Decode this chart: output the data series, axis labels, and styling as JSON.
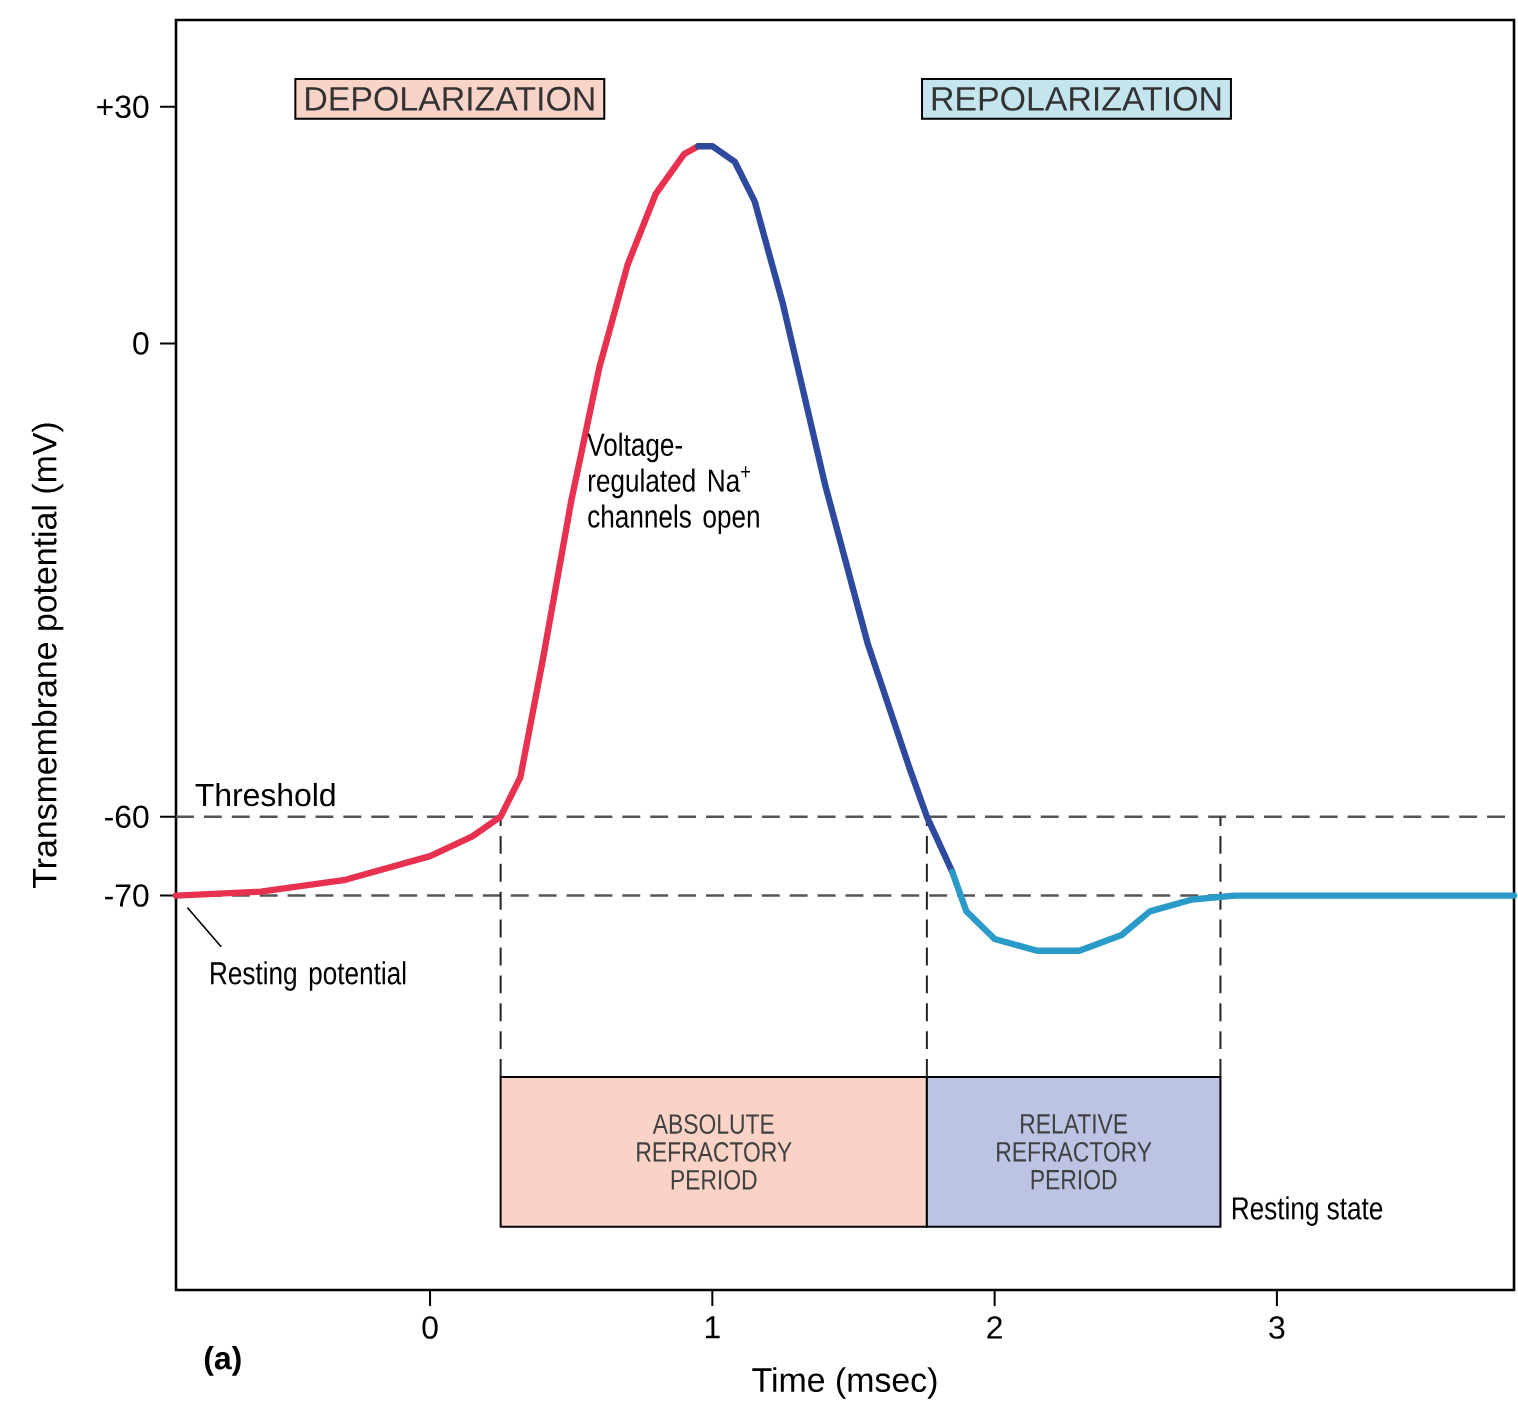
{
  "chart_data": {
    "type": "line",
    "xlabel": "Time (msec)",
    "ylabel": "Transmembrane potential (mV)",
    "xlim": [
      -0.9,
      3.84
    ],
    "ylim": [
      -120,
      41
    ],
    "xticks": [
      0,
      1,
      2,
      3
    ],
    "yticks": [
      -70,
      -60,
      0,
      {
        "value": 30,
        "label": "+30"
      }
    ],
    "series": [
      {
        "color": "#e8314e",
        "x": [
          -0.9,
          -0.6,
          -0.3,
          0,
          0.15,
          0.25,
          0.32,
          0.4,
          0.5,
          0.6,
          0.7,
          0.8,
          0.9,
          0.95
        ],
        "values": [
          -70,
          -69.5,
          -68,
          -65,
          -62.5,
          -60,
          -55,
          -40,
          -20,
          -3,
          10,
          19,
          24,
          25
        ]
      },
      {
        "color": "#2e4a9e",
        "x": [
          0.95,
          1.0,
          1.08,
          1.15,
          1.25,
          1.4,
          1.55,
          1.7,
          1.76,
          1.85
        ],
        "values": [
          25,
          25,
          23,
          18,
          5,
          -18,
          -38,
          -54,
          -60,
          -67
        ]
      },
      {
        "color": "#2a9ac8",
        "x": [
          1.85,
          1.9,
          2.0,
          2.15,
          2.3,
          2.45,
          2.55,
          2.7,
          2.85,
          3.2,
          3.84
        ],
        "values": [
          -67,
          -72,
          -75.5,
          -77,
          -77,
          -75,
          -72,
          -70.5,
          -70,
          -70,
          -70
        ]
      }
    ],
    "ref_lines": [
      {
        "axis": "y",
        "value": -60,
        "label": "Threshold",
        "line_style": "dashed",
        "color": "#555555"
      },
      {
        "axis": "y",
        "value": -70,
        "line_style": "dashed",
        "color": "#555555"
      },
      {
        "axis": "x",
        "value": 0.25,
        "line_style": "dashed",
        "color": "#222222"
      },
      {
        "axis": "x",
        "value": 1.76,
        "line_style": "dashed",
        "color": "#222222"
      },
      {
        "axis": "x",
        "value": 2.8,
        "line_style": "dashed",
        "color": "#222222"
      }
    ],
    "bands": [
      {
        "axis": "x",
        "from": 0.25,
        "to": 1.76,
        "label": "ABSOLUTE REFRACTORY PERIOD",
        "color": "#fad3c6"
      },
      {
        "axis": "x",
        "from": 1.76,
        "to": 2.8,
        "label": "RELATIVE REFRACTORY PERIOD",
        "color": "#bcc3e3"
      }
    ],
    "annotations": [
      "DEPOLARIZATION",
      "REPOLARIZATION",
      "Voltage-regulated Na$^{+}$ channels open",
      {
        "text": "Resting potential",
        "x": -0.9,
        "y": -70
      },
      "Resting state",
      "(a)"
    ],
    "grid": false,
    "marker": "none",
    "line_style": "solid"
  }
}
